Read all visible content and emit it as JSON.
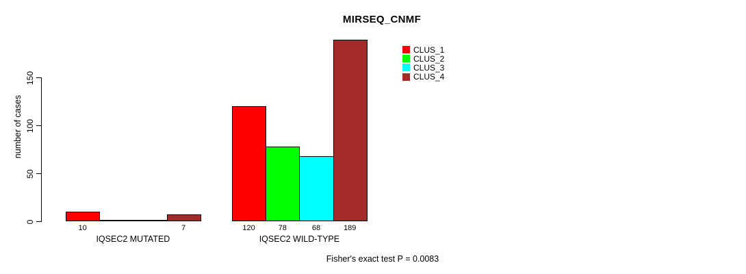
{
  "title": "MIRSEQ_CNMF",
  "chart_data": {
    "type": "bar",
    "title": "MIRSEQ_CNMF",
    "categories": [
      "IQSEC2 MUTATED",
      "IQSEC2 WILD-TYPE"
    ],
    "series": [
      {
        "name": "CLUS_1",
        "color": "#FF0000",
        "values": [
          10,
          120
        ]
      },
      {
        "name": "CLUS_2",
        "color": "#00FF00",
        "values": [
          0,
          78
        ]
      },
      {
        "name": "CLUS_3",
        "color": "#00FFFF",
        "values": [
          0,
          68
        ]
      },
      {
        "name": "CLUS_4",
        "color": "#A52A2A",
        "values": [
          7,
          189
        ]
      }
    ],
    "bar_value_labels": [
      [
        "10",
        "",
        "",
        "7"
      ],
      [
        "120",
        "78",
        "68",
        "189"
      ]
    ],
    "ylabel": "number of cases",
    "xlabel": "",
    "yticks": [
      "0",
      "50",
      "100",
      "150"
    ],
    "ylim": [
      0,
      197
    ],
    "grid": false,
    "legend_position": "top-right"
  },
  "footer": {
    "caption": "Fisher's exact test P = 0.0083"
  }
}
